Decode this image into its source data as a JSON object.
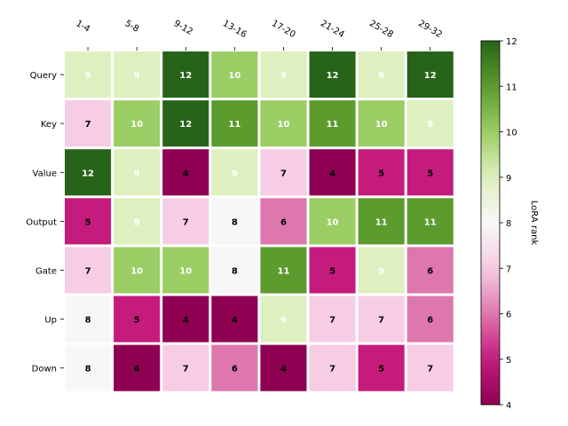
{
  "chart_data": {
    "type": "heatmap",
    "title": "",
    "xlabel": "",
    "ylabel": "",
    "x_tick_labels": [
      "1-4",
      "5-8",
      "9-12",
      "13-16",
      "17-20",
      "21-24",
      "25-28",
      "29-32"
    ],
    "y_tick_labels": [
      "Query",
      "Key",
      "Value",
      "Output",
      "Gate",
      "Up",
      "Down"
    ],
    "values": [
      [
        9,
        9,
        12,
        10,
        9,
        12,
        9,
        12
      ],
      [
        7,
        10,
        12,
        11,
        10,
        11,
        10,
        9
      ],
      [
        12,
        9,
        4,
        9,
        7,
        4,
        5,
        5
      ],
      [
        5,
        9,
        7,
        8,
        6,
        10,
        11,
        11
      ],
      [
        7,
        10,
        10,
        8,
        11,
        5,
        9,
        6
      ],
      [
        8,
        5,
        4,
        4,
        9,
        7,
        7,
        6
      ],
      [
        8,
        4,
        7,
        6,
        4,
        7,
        5,
        7
      ]
    ],
    "colorbar": {
      "label": "LoRA rank",
      "min": 4,
      "max": 12,
      "ticks": [
        4,
        5,
        6,
        7,
        8,
        9,
        10,
        11,
        12
      ],
      "colormap": "PiYG"
    },
    "value_labels_shown": true,
    "grid": false
  }
}
